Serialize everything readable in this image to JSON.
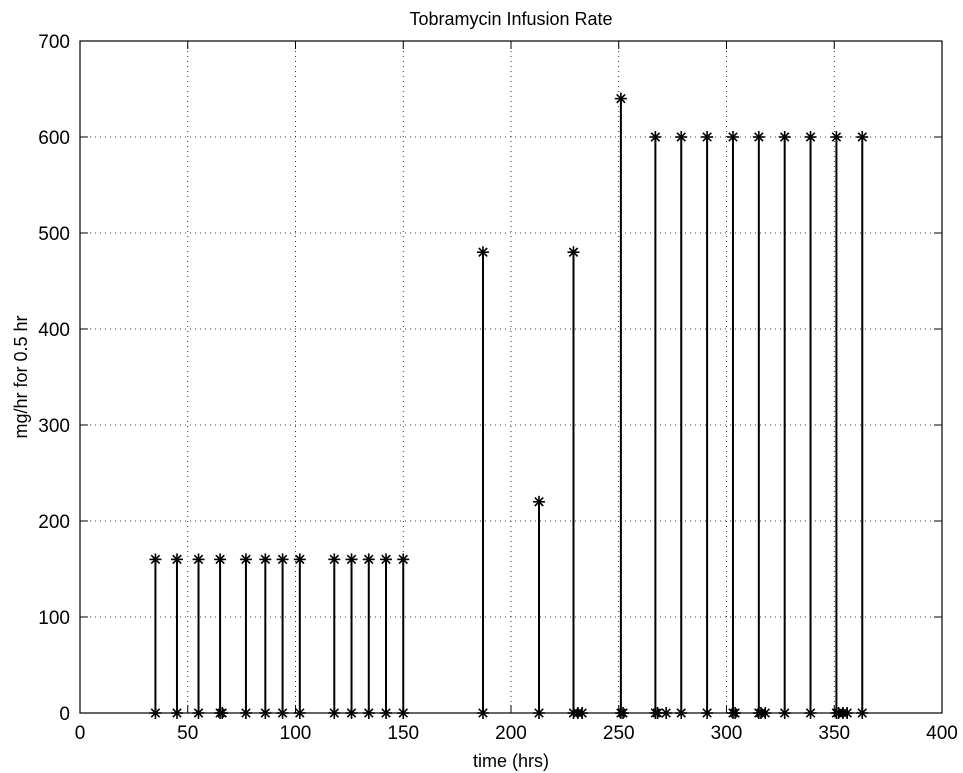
{
  "chart_data": {
    "type": "scatter",
    "title": "Tobramycin Infusion Rate",
    "xlabel": "time (hrs)",
    "ylabel": "mg/hr for 0.5 hr",
    "xlim": [
      0,
      400
    ],
    "ylim": [
      0,
      700
    ],
    "xticks": [
      0,
      50,
      100,
      150,
      200,
      250,
      300,
      350,
      400
    ],
    "yticks": [
      0,
      100,
      200,
      300,
      400,
      500,
      600,
      700
    ],
    "grid": true,
    "marker": "asterisk",
    "color": "#000000",
    "series": [
      {
        "x": [
          35,
          45,
          55,
          65,
          77,
          86,
          94,
          102,
          118,
          126,
          134,
          142,
          150,
          187,
          213,
          229,
          251,
          267,
          279,
          291,
          303,
          315,
          327,
          339,
          351,
          363
        ],
        "values": [
          160,
          160,
          160,
          160,
          160,
          160,
          160,
          160,
          160,
          160,
          160,
          160,
          160,
          480,
          220,
          480,
          640,
          600,
          600,
          600,
          600,
          600,
          600,
          600,
          600,
          600
        ]
      }
    ],
    "zero_points_x": [
      35,
      45,
      55,
      65,
      66,
      77,
      86,
      94,
      102,
      118,
      126,
      134,
      142,
      150,
      187,
      213,
      229,
      231,
      233,
      251,
      252,
      267,
      268,
      272,
      279,
      291,
      303,
      304,
      315,
      316,
      318,
      327,
      339,
      351,
      352,
      354,
      356,
      363
    ]
  }
}
